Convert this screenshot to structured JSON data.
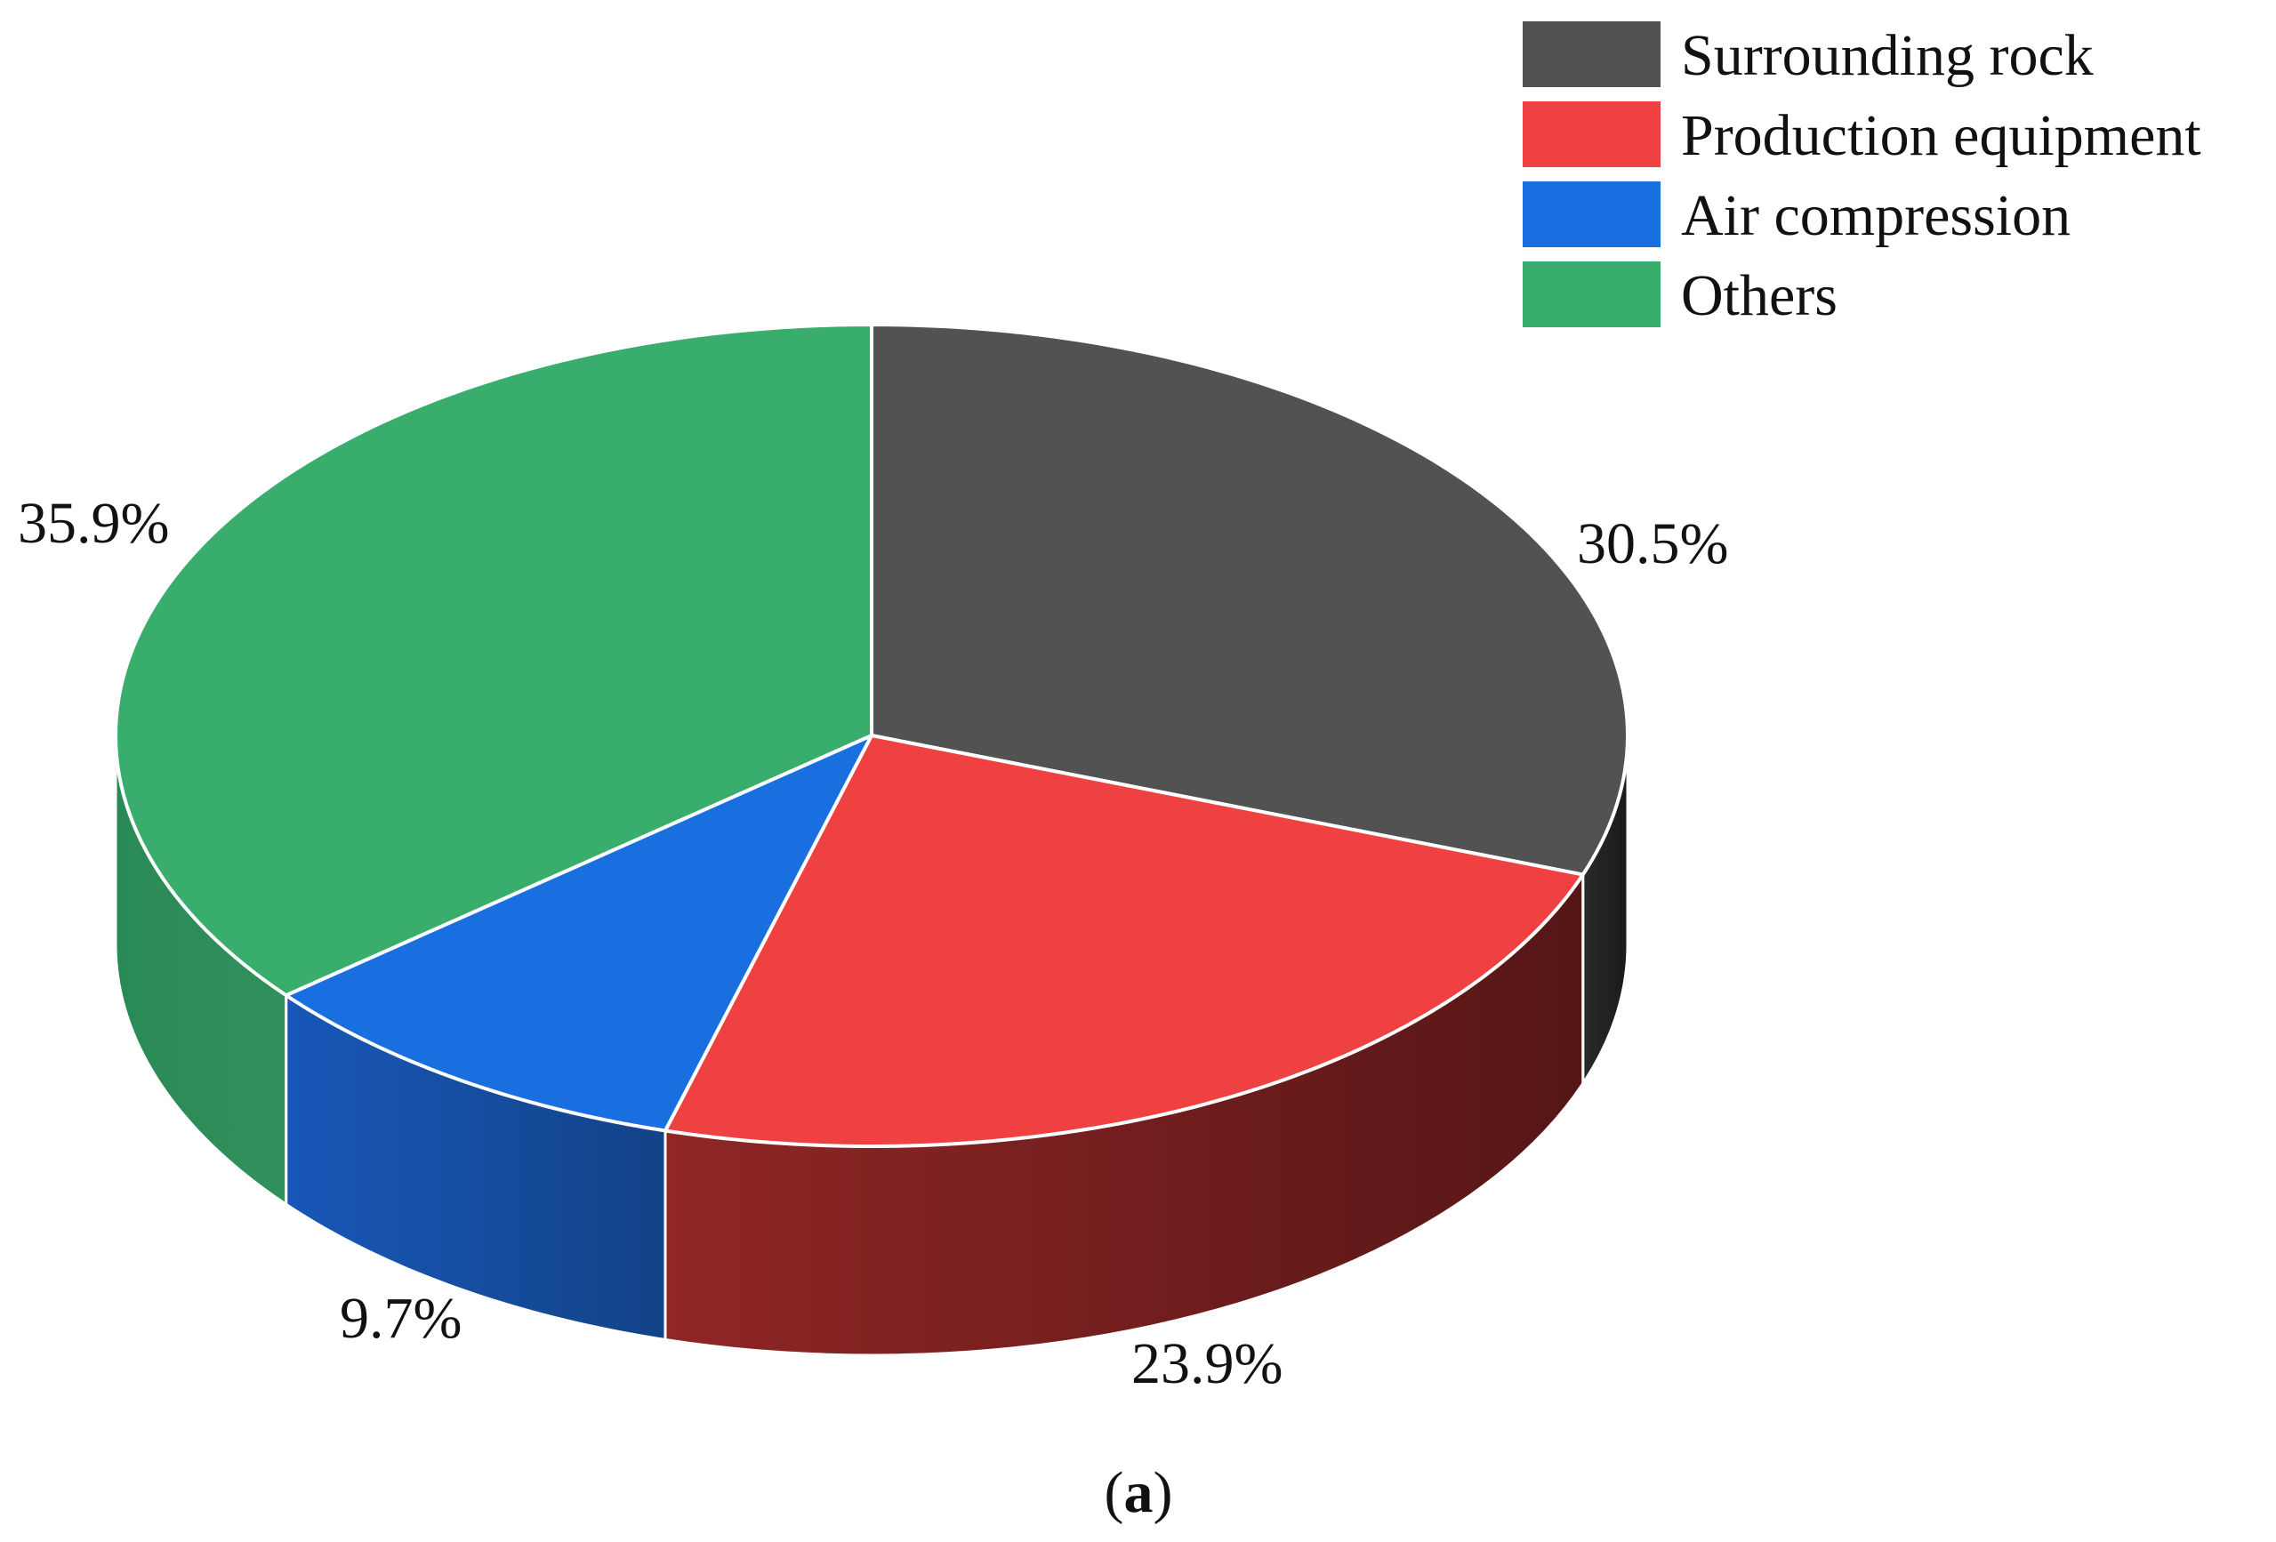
{
  "chart_data": {
    "type": "pie",
    "style": "3d",
    "categories": [
      "Surrounding rock",
      "Production equipment",
      "Air compression",
      "Others"
    ],
    "values": [
      30.5,
      23.9,
      9.7,
      35.9
    ],
    "unit": "%",
    "value_labels": [
      "30.5%",
      "23.9%",
      "9.7%",
      "35.9%"
    ],
    "colors": [
      "#525252",
      "#ef4141",
      "#1a6fe0",
      "#38ad6c"
    ],
    "side_colors": [
      "#1f1f1f",
      "#5e1818",
      "#14489a",
      "#2a8a55"
    ],
    "legend": {
      "placement": "top-right",
      "entries": [
        "Surrounding rock",
        "Production equipment",
        "Air compression",
        "Others"
      ]
    },
    "caption": {
      "open": "(",
      "bold": "a",
      "close": ")"
    }
  }
}
